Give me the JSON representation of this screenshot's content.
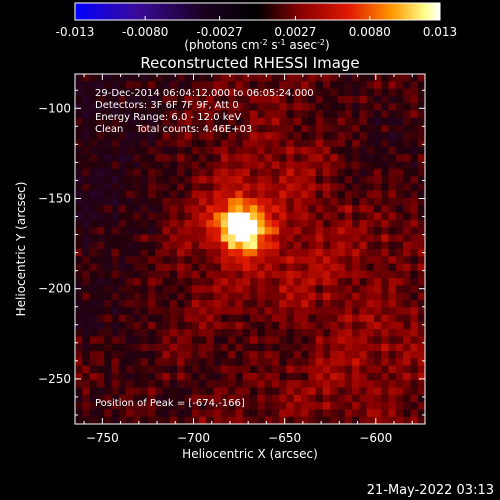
{
  "colorbar": {
    "ticks": [
      -0.013,
      -0.008,
      -0.0027,
      0.0027,
      0.008,
      0.013
    ],
    "tick_labels": [
      "-0.013",
      "-0.0080",
      "-0.0027",
      "0.0027",
      "0.0080",
      "0.013"
    ],
    "units_prefix": "(photons cm",
    "units_exp1": "-2",
    "units_mid": " s",
    "units_exp2": "-1",
    "units_mid2": " asec",
    "units_exp3": "-2",
    "units_suffix": ")",
    "colormap": [
      "#0000ff",
      "#3b0a8a",
      "#000000",
      "#b40000",
      "#ff7a00",
      "#ffff80",
      "#ffffff"
    ]
  },
  "chart_data": {
    "type": "heatmap",
    "title": "Reconstructed RHESSI Image",
    "xlabel": "Heliocentric X (arcsec)",
    "ylabel": "Heliocentric Y (arcsec)",
    "xlim": [
      -765,
      -573
    ],
    "ylim": [
      -275,
      -81
    ],
    "x_ticks": [
      -750,
      -700,
      -650,
      -600
    ],
    "y_ticks": [
      -100,
      -150,
      -200,
      -250
    ],
    "x_tick_labels": [
      "−750",
      "−700",
      "−650",
      "−600"
    ],
    "y_tick_labels": [
      "−100",
      "−150",
      "−200",
      "−250"
    ],
    "peak": [
      -674,
      -166
    ],
    "vmin": -0.013,
    "vmax": 0.013
  },
  "annotations": {
    "line1": "29-Dec-2014 06:04:12.000 to 06:05:24.000",
    "line2": "Detectors: 3F 6F 7F 9F, Att 0",
    "line3": "Energy Range: 6.0 - 12.0 keV",
    "line4": "Clean    Total counts: 4.46E+03",
    "peak_text": "Position of Peak = [-674,-166]"
  },
  "footer": {
    "timestamp": "21-May-2022 03:13"
  }
}
